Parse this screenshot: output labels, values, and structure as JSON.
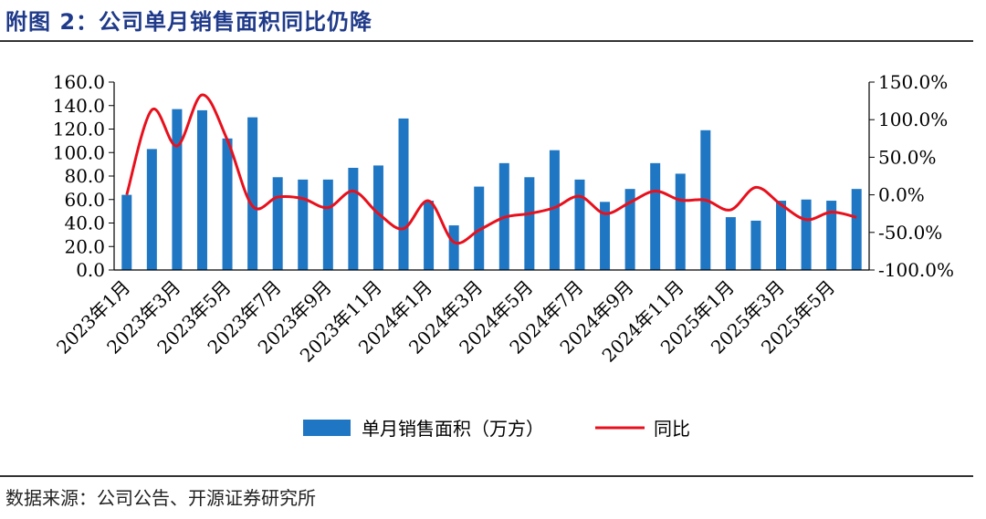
{
  "header": {
    "title": "附图 2：公司单月销售面积同比仍降"
  },
  "footer": {
    "source": "数据来源：公司公告、开源证券研究所"
  },
  "colors": {
    "bar": "#1f77c4",
    "line": "#e8101c",
    "axis": "#000000"
  },
  "chart_data": {
    "type": "bar",
    "categories": [
      "2023年1月",
      "2023年2月",
      "2023年3月",
      "2023年4月",
      "2023年5月",
      "2023年6月",
      "2023年7月",
      "2023年8月",
      "2023年9月",
      "2023年10月",
      "2023年11月",
      "2023年12月",
      "2024年1月",
      "2024年2月",
      "2024年3月",
      "2024年4月",
      "2024年5月",
      "2024年6月",
      "2024年7月",
      "2024年8月",
      "2024年9月",
      "2024年10月",
      "2024年11月",
      "2024年12月",
      "2025年1月",
      "2025年2月",
      "2025年3月",
      "2025年4月",
      "2025年5月",
      "2025年6月"
    ],
    "x_tick_labels": [
      "2023年1月",
      "2023年3月",
      "2023年5月",
      "2023年7月",
      "2023年9月",
      "2023年11月",
      "2024年1月",
      "2024年3月",
      "2024年5月",
      "2024年7月",
      "2024年9月",
      "2024年11月",
      "2025年1月",
      "2025年3月",
      "2025年5月"
    ],
    "series": [
      {
        "name": "单月销售面积（万方）",
        "type": "bar",
        "axis": "left",
        "values": [
          64,
          103,
          137,
          136,
          112,
          130,
          79,
          77,
          77,
          87,
          89,
          129,
          59,
          38,
          71,
          91,
          79,
          102,
          77,
          58,
          69,
          91,
          82,
          119,
          45,
          42,
          59,
          60,
          59,
          69
        ]
      },
      {
        "name": "同比",
        "type": "line",
        "axis": "right",
        "values": [
          0,
          113,
          65,
          133,
          73,
          -15,
          -3,
          -5,
          -17,
          5,
          -25,
          -45,
          -8,
          -63,
          -47,
          -30,
          -25,
          -17,
          -2,
          -25,
          -10,
          5,
          -7,
          -7,
          -20,
          10,
          -13,
          -33,
          -23,
          -30
        ]
      }
    ],
    "y_left": {
      "min": 0,
      "max": 160,
      "step": 20,
      "tick_labels": [
        "0.0",
        "20.0",
        "40.0",
        "60.0",
        "80.0",
        "100.0",
        "120.0",
        "140.0",
        "160.0"
      ]
    },
    "y_right": {
      "min": -100,
      "max": 150,
      "step": 50,
      "tick_labels": [
        "-100.0%",
        "-50.0%",
        "0.0%",
        "50.0%",
        "100.0%",
        "150.0%"
      ]
    },
    "legend_position": "bottom",
    "grid": false
  }
}
